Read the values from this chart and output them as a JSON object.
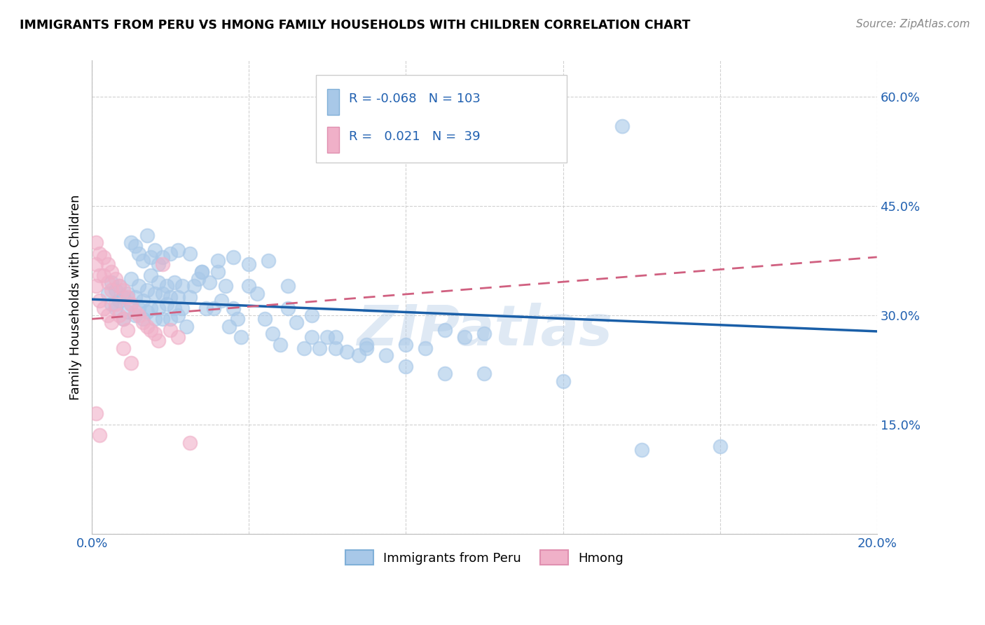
{
  "title": "IMMIGRANTS FROM PERU VS HMONG FAMILY HOUSEHOLDS WITH CHILDREN CORRELATION CHART",
  "source": "Source: ZipAtlas.com",
  "ylabel": "Family Households with Children",
  "xlim": [
    0.0,
    0.2
  ],
  "ylim": [
    0.0,
    0.65
  ],
  "ytick_values": [
    0.0,
    0.15,
    0.3,
    0.45,
    0.6
  ],
  "xtick_values": [
    0.0,
    0.04,
    0.08,
    0.12,
    0.16,
    0.2
  ],
  "color_peru": "#a8c8e8",
  "color_hmong": "#f0b0c8",
  "color_blue_text": "#2060b0",
  "color_line_peru": "#1a5fa8",
  "color_line_hmong": "#d06080",
  "watermark": "ZIPatlas",
  "peru_line_x": [
    0.0,
    0.2
  ],
  "peru_line_y": [
    0.322,
    0.278
  ],
  "hmong_line_x": [
    0.0,
    0.2
  ],
  "hmong_line_y": [
    0.295,
    0.38
  ],
  "peru_scatter_x": [
    0.004,
    0.005,
    0.005,
    0.006,
    0.006,
    0.007,
    0.007,
    0.008,
    0.008,
    0.009,
    0.009,
    0.01,
    0.01,
    0.011,
    0.011,
    0.012,
    0.012,
    0.013,
    0.013,
    0.014,
    0.014,
    0.015,
    0.015,
    0.016,
    0.016,
    0.017,
    0.017,
    0.018,
    0.018,
    0.019,
    0.019,
    0.02,
    0.02,
    0.021,
    0.021,
    0.022,
    0.022,
    0.023,
    0.023,
    0.024,
    0.025,
    0.026,
    0.027,
    0.028,
    0.029,
    0.03,
    0.031,
    0.032,
    0.033,
    0.034,
    0.035,
    0.036,
    0.037,
    0.038,
    0.04,
    0.042,
    0.044,
    0.046,
    0.048,
    0.05,
    0.052,
    0.054,
    0.056,
    0.058,
    0.06,
    0.062,
    0.065,
    0.068,
    0.07,
    0.075,
    0.08,
    0.085,
    0.09,
    0.095,
    0.1,
    0.01,
    0.011,
    0.012,
    0.013,
    0.014,
    0.015,
    0.016,
    0.017,
    0.018,
    0.02,
    0.022,
    0.025,
    0.028,
    0.032,
    0.036,
    0.04,
    0.045,
    0.05,
    0.056,
    0.062,
    0.07,
    0.08,
    0.09,
    0.1,
    0.12,
    0.14,
    0.16,
    0.135
  ],
  "peru_scatter_y": [
    0.33,
    0.315,
    0.345,
    0.31,
    0.335,
    0.32,
    0.34,
    0.295,
    0.325,
    0.305,
    0.33,
    0.315,
    0.35,
    0.3,
    0.325,
    0.31,
    0.34,
    0.295,
    0.32,
    0.305,
    0.335,
    0.31,
    0.355,
    0.295,
    0.33,
    0.31,
    0.345,
    0.295,
    0.33,
    0.315,
    0.34,
    0.295,
    0.325,
    0.31,
    0.345,
    0.3,
    0.325,
    0.31,
    0.34,
    0.285,
    0.325,
    0.34,
    0.35,
    0.36,
    0.31,
    0.345,
    0.31,
    0.36,
    0.32,
    0.34,
    0.285,
    0.31,
    0.295,
    0.27,
    0.34,
    0.33,
    0.295,
    0.275,
    0.26,
    0.31,
    0.29,
    0.255,
    0.27,
    0.255,
    0.27,
    0.255,
    0.25,
    0.245,
    0.255,
    0.245,
    0.26,
    0.255,
    0.28,
    0.27,
    0.275,
    0.4,
    0.395,
    0.385,
    0.375,
    0.41,
    0.38,
    0.39,
    0.37,
    0.38,
    0.385,
    0.39,
    0.385,
    0.36,
    0.375,
    0.38,
    0.37,
    0.375,
    0.34,
    0.3,
    0.27,
    0.26,
    0.23,
    0.22,
    0.22,
    0.21,
    0.115,
    0.12,
    0.56
  ],
  "hmong_scatter_x": [
    0.001,
    0.001,
    0.001,
    0.001,
    0.002,
    0.002,
    0.002,
    0.002,
    0.003,
    0.003,
    0.003,
    0.004,
    0.004,
    0.004,
    0.005,
    0.005,
    0.005,
    0.006,
    0.006,
    0.007,
    0.007,
    0.008,
    0.008,
    0.008,
    0.009,
    0.009,
    0.01,
    0.01,
    0.011,
    0.012,
    0.013,
    0.014,
    0.015,
    0.016,
    0.017,
    0.018,
    0.02,
    0.022,
    0.025
  ],
  "hmong_scatter_y": [
    0.4,
    0.37,
    0.34,
    0.165,
    0.385,
    0.355,
    0.32,
    0.135,
    0.38,
    0.355,
    0.31,
    0.37,
    0.345,
    0.3,
    0.36,
    0.335,
    0.29,
    0.35,
    0.315,
    0.34,
    0.3,
    0.335,
    0.295,
    0.255,
    0.325,
    0.28,
    0.315,
    0.235,
    0.305,
    0.3,
    0.29,
    0.285,
    0.28,
    0.275,
    0.265,
    0.37,
    0.28,
    0.27,
    0.125
  ]
}
